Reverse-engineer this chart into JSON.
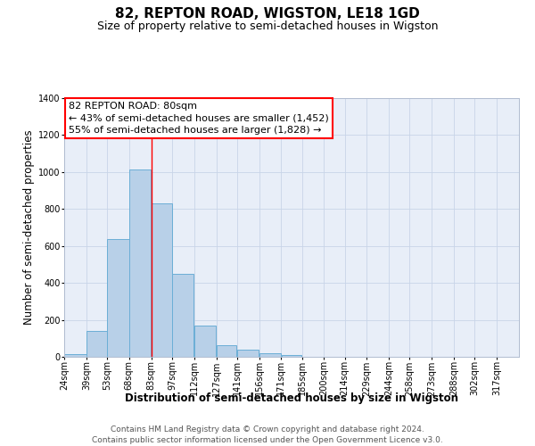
{
  "title": "82, REPTON ROAD, WIGSTON, LE18 1GD",
  "subtitle": "Size of property relative to semi-detached houses in Wigston",
  "xlabel": "Distribution of semi-detached houses by size in Wigston",
  "ylabel": "Number of semi-detached properties",
  "footnote1": "Contains HM Land Registry data © Crown copyright and database right 2024.",
  "footnote2": "Contains public sector information licensed under the Open Government Licence v3.0.",
  "bar_left_edges": [
    24,
    39,
    53,
    68,
    83,
    97,
    112,
    127,
    141,
    156,
    171,
    185,
    200,
    214,
    229,
    244,
    258,
    273,
    288,
    302
  ],
  "bar_widths": [
    15,
    14,
    15,
    15,
    14,
    15,
    15,
    14,
    15,
    15,
    14,
    15,
    14,
    15,
    15,
    14,
    15,
    15,
    14,
    15
  ],
  "bar_heights": [
    15,
    140,
    635,
    1015,
    830,
    450,
    170,
    65,
    40,
    18,
    10,
    0,
    0,
    0,
    0,
    0,
    0,
    0,
    0,
    0
  ],
  "x_tick_labels": [
    "24sqm",
    "39sqm",
    "53sqm",
    "68sqm",
    "83sqm",
    "97sqm",
    "112sqm",
    "127sqm",
    "141sqm",
    "156sqm",
    "171sqm",
    "185sqm",
    "200sqm",
    "214sqm",
    "229sqm",
    "244sqm",
    "258sqm",
    "273sqm",
    "288sqm",
    "302sqm",
    "317sqm"
  ],
  "x_tick_positions": [
    24,
    39,
    53,
    68,
    83,
    97,
    112,
    127,
    141,
    156,
    171,
    185,
    200,
    214,
    229,
    244,
    258,
    273,
    288,
    302,
    317
  ],
  "ylim": [
    0,
    1400
  ],
  "yticks": [
    0,
    200,
    400,
    600,
    800,
    1000,
    1200,
    1400
  ],
  "bar_color": "#b8d0e8",
  "bar_edge_color": "#6baed6",
  "marker_x": 83,
  "annotation_title": "82 REPTON ROAD: 80sqm",
  "annotation_line1": "← 43% of semi-detached houses are smaller (1,452)",
  "annotation_line2": "55% of semi-detached houses are larger (1,828) →",
  "bg_color": "#e8eef8",
  "grid_color": "#c8d4e8",
  "title_fontsize": 11,
  "subtitle_fontsize": 9,
  "axis_label_fontsize": 8.5,
  "tick_fontsize": 7,
  "annotation_fontsize": 8,
  "footnote_fontsize": 6.5
}
